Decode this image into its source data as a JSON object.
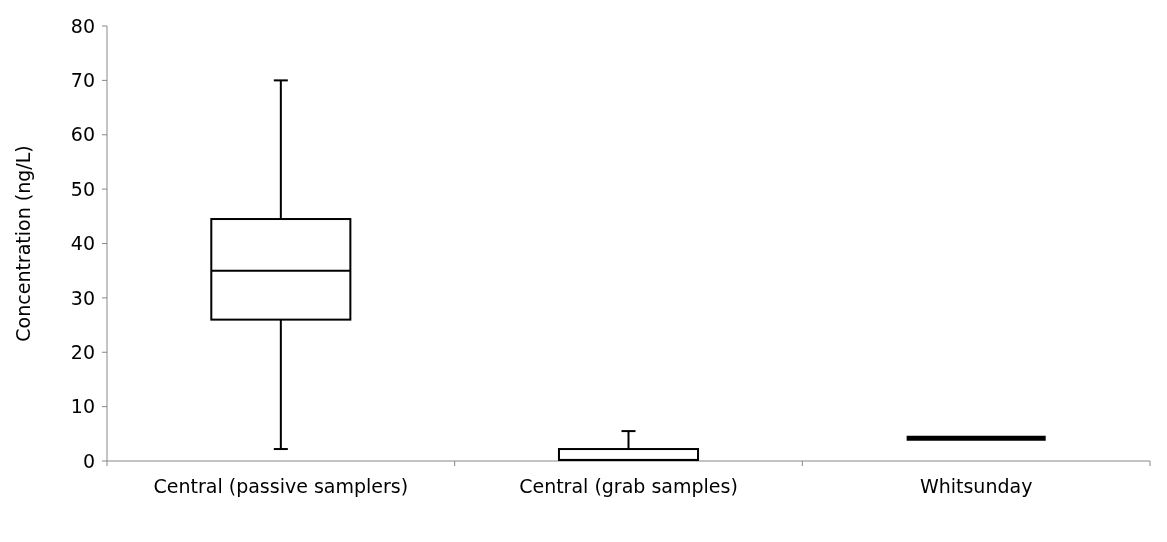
{
  "chart_data": {
    "type": "box",
    "ylabel": "Concentration (ng/L)",
    "categories": [
      "Central (passive samplers)",
      "Central (grab samples)",
      "Whitsunday"
    ],
    "boxes": [
      {
        "low": 2.2,
        "q1": 26,
        "median": 35,
        "q3": 44.5,
        "high": 70
      },
      {
        "low": 0.2,
        "q1": 0.2,
        "median": 0.2,
        "q3": 2.2,
        "high": 5.5
      },
      {
        "low": 4.2,
        "q1": 4.2,
        "median": 4.2,
        "q3": 4.2,
        "high": 4.2
      }
    ],
    "ylim": [
      0,
      80
    ],
    "yticks": [
      0,
      10,
      20,
      30,
      40,
      50,
      60,
      70,
      80
    ],
    "grid": false
  }
}
